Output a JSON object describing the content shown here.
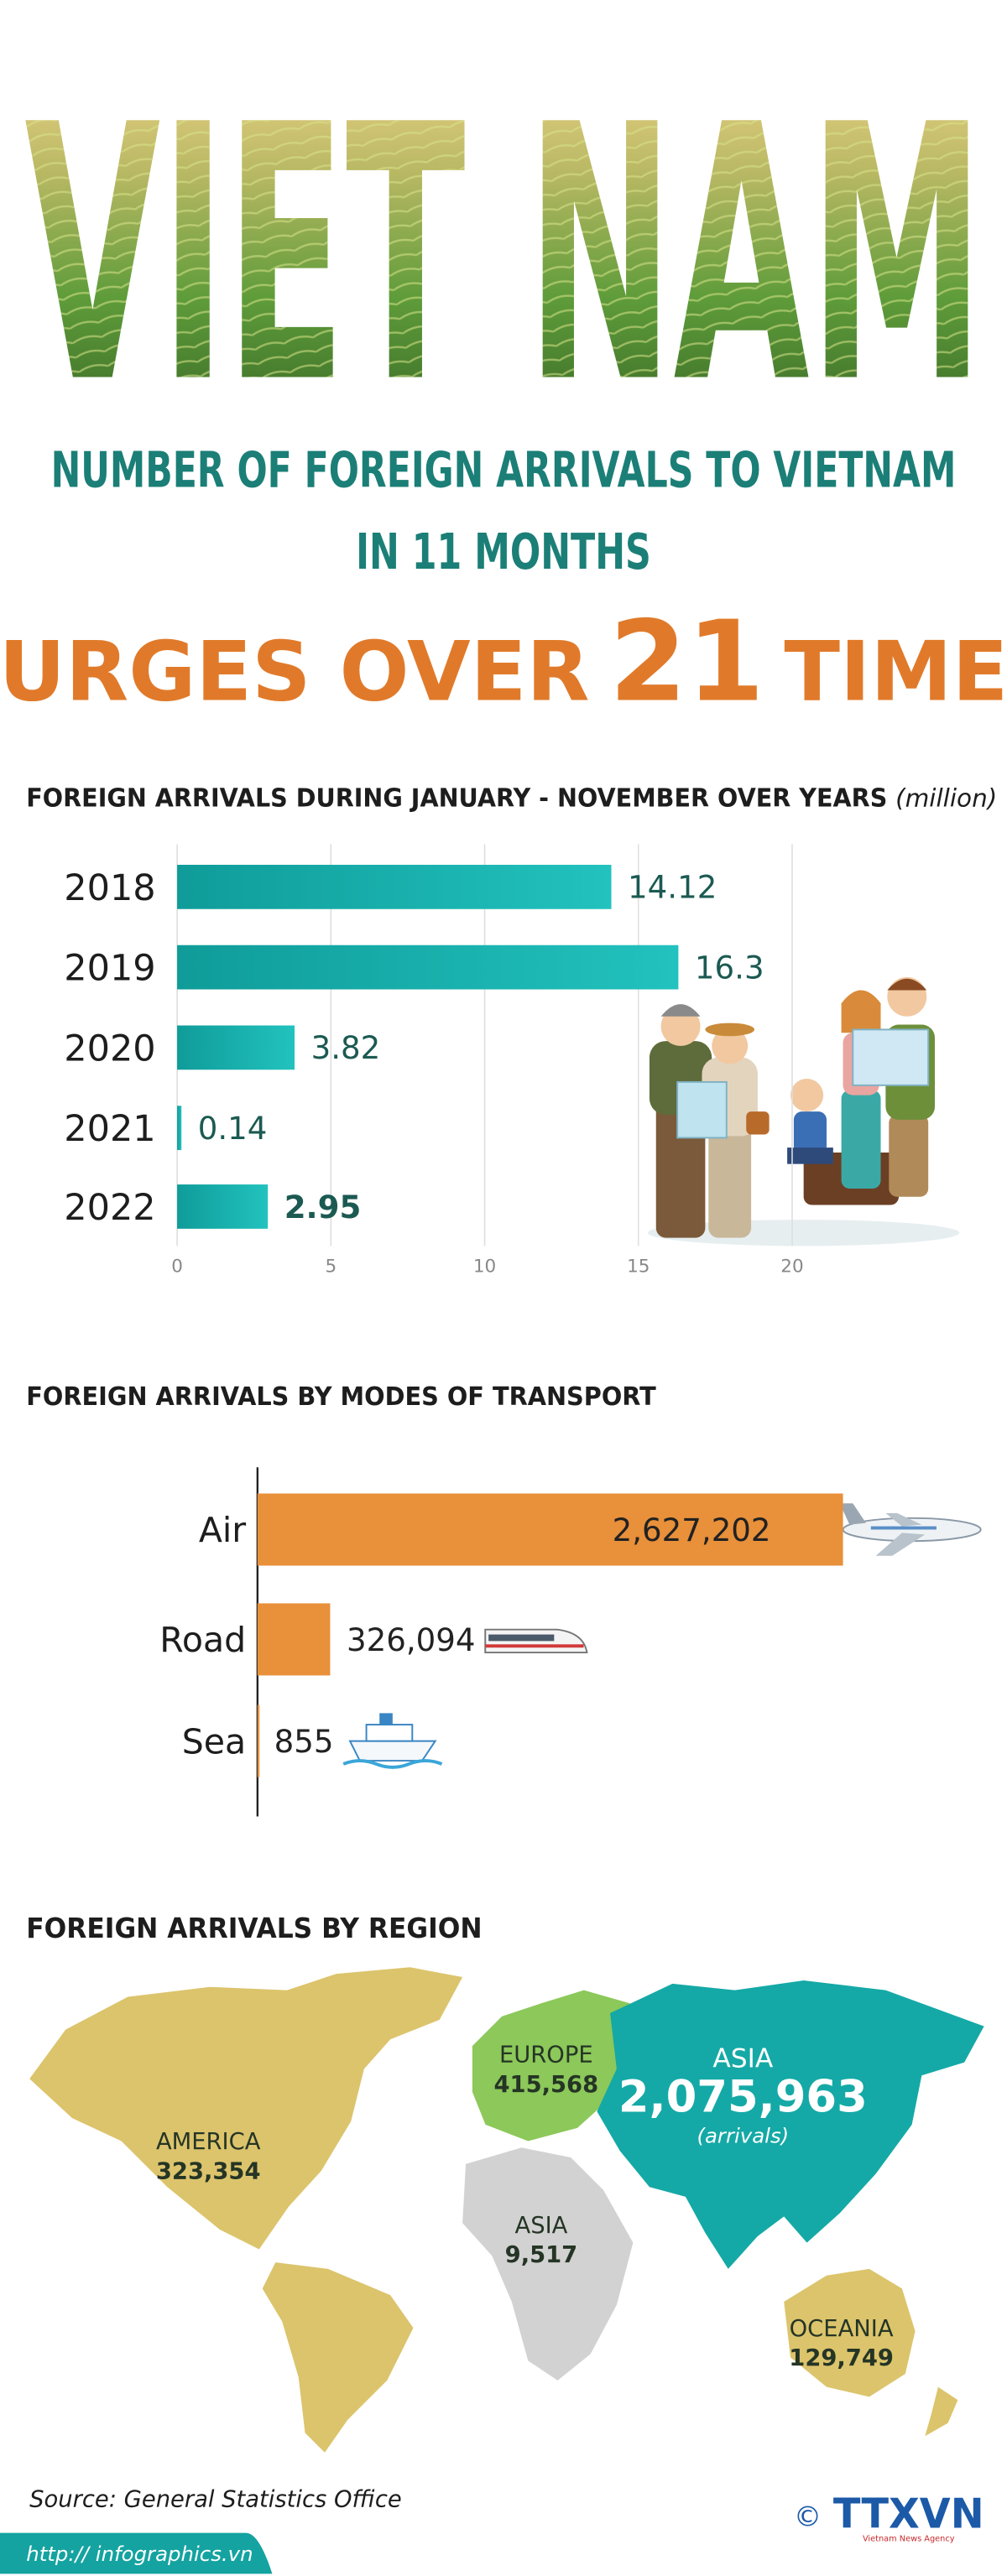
{
  "header": {
    "title": "VIET NAM",
    "headline": [
      "NUMBER OF FOREIGN ARRIVALS TO VIETNAM",
      "IN 11 MONTHS"
    ],
    "highlight": [
      "SURGES OVER",
      "21",
      "TIMES"
    ]
  },
  "chart_data": [
    {
      "type": "bar",
      "title": "FOREIGN ARRIVALS DURING JANUARY - NOVEMBER OVER YEARS",
      "unit": "(million)",
      "categories": [
        "2018",
        "2019",
        "2020",
        "2021",
        "2022"
      ],
      "values": [
        14.12,
        16.3,
        3.82,
        0.14,
        2.95
      ],
      "color": "#14aeab",
      "xlim": [
        0,
        20
      ],
      "xticks": [
        0,
        5,
        10,
        15,
        20
      ],
      "grid": true
    },
    {
      "type": "bar",
      "title": "FOREIGN ARRIVALS BY MODES OF TRANSPORT",
      "categories": [
        "Air",
        "Road",
        "Sea"
      ],
      "values": [
        2627202,
        326094,
        855
      ],
      "value_labels": [
        "2,627,202",
        "326,094",
        "855"
      ],
      "color": "#e8903a"
    },
    {
      "type": "map",
      "title": "FOREIGN ARRIVALS BY REGION",
      "categories": [
        "EUROPE",
        "ASIA",
        "ASIA",
        "AMERICA",
        "OCEANIA"
      ],
      "values": [
        415568,
        2075963,
        9517,
        323354,
        129749
      ],
      "value_labels": [
        "415,568",
        "2,075,963",
        "9,517",
        "323,354",
        "129,749"
      ],
      "colors": [
        "#8cc85a",
        "#14a9a6",
        "#d2d2d2",
        "#dcc46c",
        "#dcc46c"
      ],
      "annotation": "(arrivals)"
    }
  ],
  "source": "Source: General Statistics Office",
  "url": "http:// infographics.vn",
  "logo": {
    "copyright": "©",
    "name": "TTXVN",
    "tagline": "Vietnam News Agency"
  }
}
